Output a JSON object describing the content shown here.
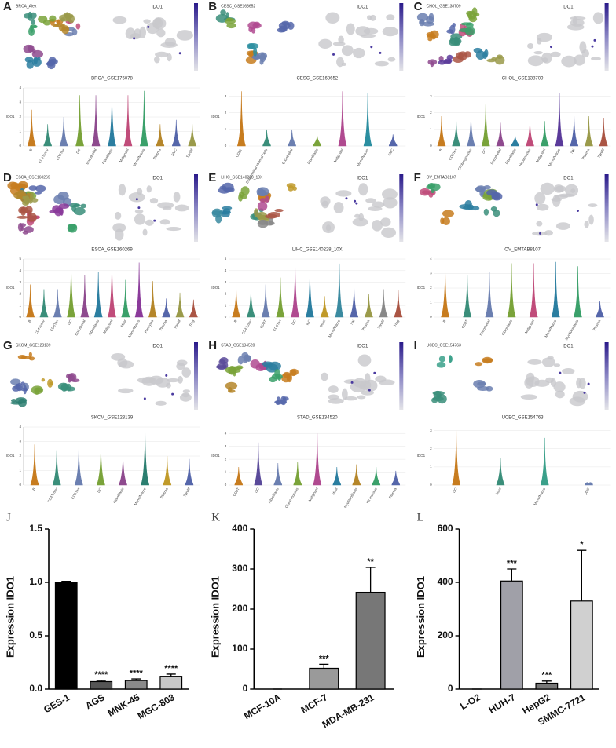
{
  "chart_data": [
    {
      "type": "violin",
      "panel": "A",
      "umap_title": "BRCA_Alex",
      "feature": "IDO1",
      "title": "BRCA_GSE176078",
      "ylabel": "IDO1",
      "categories": [
        "B",
        "CD4Tconv",
        "CD8Tex",
        "DC",
        "Endothelial",
        "Fibroblasts",
        "Malignant",
        "Mono/Macro",
        "Plasma",
        "SMC",
        "Tprolif"
      ],
      "values": [
        2.5,
        1.5,
        2.0,
        3.5,
        3.5,
        3.5,
        3.5,
        3.8,
        1.5,
        1.8,
        1.5
      ],
      "colors": [
        "#c77c1f",
        "#3a8e7a",
        "#6b7fb0",
        "#7aa33a",
        "#8e4a8e",
        "#2b7ea0",
        "#c04c7a",
        "#3aa06a",
        "#b5862a",
        "#5566aa",
        "#9a9a4a"
      ],
      "ylim": [
        0,
        4
      ],
      "yticks": [
        0,
        1,
        2,
        3,
        4
      ]
    },
    {
      "type": "violin",
      "panel": "B",
      "umap_title": "CESC_GSE168652",
      "feature": "IDO1",
      "title": "CESC_GSE168652",
      "ylabel": "IDO1",
      "categories": [
        "CD8T",
        "Endometrial stromal cells",
        "Endothelial",
        "Fibroblasts",
        "Malignant",
        "Mono/Macro",
        "SMC"
      ],
      "values": [
        3.3,
        1.0,
        1.0,
        0.6,
        3.3,
        3.2,
        0.7
      ],
      "colors": [
        "#c77c1f",
        "#3a8e7a",
        "#6b7fb0",
        "#7aa33a",
        "#b04a90",
        "#2b8ea0",
        "#5566aa"
      ],
      "ylim": [
        0,
        3.5
      ],
      "yticks": [
        0,
        1,
        2,
        3
      ]
    },
    {
      "type": "violin",
      "panel": "C",
      "umap_title": "CHOL_GSE138709",
      "feature": "IDO1",
      "title": "CHOL_GSE138709",
      "ylabel": "IDO1",
      "categories": [
        "B",
        "CD8Tex",
        "Cholangiocytes",
        "DC",
        "Endothelial",
        "Fibroblasts",
        "Hepatocytes",
        "Malignant",
        "Mono/Macro",
        "NK",
        "Plasma",
        "Tprolif"
      ],
      "values": [
        1.8,
        1.5,
        1.8,
        2.5,
        1.4,
        0.6,
        1.5,
        1.5,
        3.2,
        1.8,
        1.8,
        1.7
      ],
      "colors": [
        "#c77c1f",
        "#3a8e7a",
        "#6b7fb0",
        "#7aa33a",
        "#8e4a8e",
        "#2b7ea0",
        "#c04c7a",
        "#3aa06a",
        "#5a3a9a",
        "#5566aa",
        "#9a9a4a",
        "#aa5544"
      ],
      "ylim": [
        0,
        3.5
      ],
      "yticks": [
        0,
        1,
        2,
        3
      ]
    },
    {
      "type": "violin",
      "panel": "D",
      "umap_title": "ESCA_GSE160269",
      "feature": "IDO1",
      "title": "ESCA_GSE160269",
      "ylabel": "IDO1",
      "categories": [
        "B",
        "CD4Tconv",
        "CD8Tex",
        "DC",
        "Endothelial",
        "Fibroblasts",
        "Malignant",
        "Mast",
        "Mono/Macro",
        "Pericytes",
        "Plasma",
        "Tprolif",
        "Treg"
      ],
      "values": [
        2.8,
        2.4,
        2.4,
        4.5,
        3.6,
        3.9,
        4.7,
        3.2,
        4.7,
        3.1,
        1.6,
        2.1,
        1.5
      ],
      "colors": [
        "#c77c1f",
        "#3a8e7a",
        "#6b7fb0",
        "#7aa33a",
        "#8e4a8e",
        "#2b7ea0",
        "#c04c7a",
        "#3aa06a",
        "#8a3a9a",
        "#b5862a",
        "#5566aa",
        "#9a9a4a",
        "#aa5544"
      ],
      "ylim": [
        0,
        5
      ],
      "yticks": [
        0,
        1,
        2,
        3,
        4,
        5
      ]
    },
    {
      "type": "violin",
      "panel": "E",
      "umap_title": "LIHC_GSE140228_10X",
      "feature": "IDO1",
      "title": "LIHC_GSE140228_10X",
      "ylabel": "IDO1",
      "categories": [
        "B",
        "CD4Tconv",
        "CD8T",
        "CD8Tex",
        "DC",
        "ILC",
        "Mast",
        "Mono/Macro",
        "NK",
        "Plasma",
        "Tprolif",
        "Treg"
      ],
      "values": [
        2.4,
        2.3,
        2.8,
        3.4,
        4.5,
        3.9,
        1.8,
        4.6,
        2.6,
        2.0,
        2.4,
        2.3
      ],
      "colors": [
        "#c77c1f",
        "#3a8e7a",
        "#6b7fb0",
        "#7aa33a",
        "#b04a90",
        "#2b7ea0",
        "#c09a2a",
        "#3a8aa0",
        "#5566aa",
        "#9a9a4a",
        "#888888",
        "#aa5544"
      ],
      "ylim": [
        0,
        5
      ],
      "yticks": [
        0,
        1,
        2,
        3,
        4,
        5
      ]
    },
    {
      "type": "violin",
      "panel": "F",
      "umap_title": "OV_EMTAB8107",
      "feature": "IDO1",
      "title": "OV_EMTAB8107",
      "ylabel": "IDO1",
      "categories": [
        "B",
        "CD8T",
        "Endothelial",
        "Fibroblasts",
        "Malignant",
        "Mono/Macro",
        "Myofibroblasts",
        "Plasma"
      ],
      "values": [
        3.3,
        2.9,
        3.1,
        3.7,
        3.7,
        3.8,
        3.5,
        1.1
      ],
      "colors": [
        "#c77c1f",
        "#3a8e7a",
        "#6b7fb0",
        "#7aa33a",
        "#c04c7a",
        "#2b7ea0",
        "#3aa06a",
        "#5566aa"
      ],
      "ylim": [
        0,
        4
      ],
      "yticks": [
        0,
        1,
        2,
        3,
        4
      ]
    },
    {
      "type": "violin",
      "panel": "G",
      "umap_title": "SKCM_GSE123139",
      "feature": "IDO1",
      "title": "SKCM_GSE123139",
      "ylabel": "IDO1",
      "categories": [
        "B",
        "CD4Tconv",
        "CD8Tex",
        "DC",
        "Fibroblasts",
        "Mono/Macro",
        "Plasma",
        "Tprolif"
      ],
      "values": [
        2.8,
        2.4,
        2.5,
        2.6,
        2.0,
        3.7,
        2.0,
        1.8
      ],
      "colors": [
        "#c77c1f",
        "#3a8e7a",
        "#6b7fb0",
        "#7aa33a",
        "#8e4a8e",
        "#2b7e70",
        "#c09a2a",
        "#5566aa"
      ],
      "ylim": [
        0,
        4
      ],
      "yticks": [
        0,
        1,
        2,
        3,
        4
      ]
    },
    {
      "type": "violin",
      "panel": "H",
      "umap_title": "STAD_GSE134520",
      "feature": "IDO1",
      "title": "STAD_GSE134520",
      "ylabel": "IDO1",
      "categories": [
        "CD8T",
        "DC",
        "Fibroblasts",
        "Gland mucous",
        "Malignant",
        "Mast",
        "Myofibroblasts",
        "Pit mucous",
        "Plasma"
      ],
      "values": [
        1.4,
        3.3,
        1.7,
        1.8,
        4.0,
        1.4,
        1.6,
        1.4,
        1.1
      ],
      "colors": [
        "#c77c1f",
        "#5a4a9a",
        "#6b7fb0",
        "#7aa33a",
        "#b04a90",
        "#2b7ea0",
        "#b5862a",
        "#3aa06a",
        "#5566aa"
      ],
      "ylim": [
        0,
        4.5
      ],
      "yticks": [
        0,
        1,
        2,
        3,
        4
      ]
    },
    {
      "type": "violin",
      "panel": "I",
      "umap_title": "UCEC_GSE154763",
      "feature": "IDO1",
      "title": "UCEC_GSE154763",
      "ylabel": "IDO1",
      "categories": [
        "DC",
        "Mast",
        "Mono/Macro",
        "pDC"
      ],
      "values": [
        3.0,
        1.5,
        2.6,
        0.05
      ],
      "colors": [
        "#c77c1f",
        "#3a8e7a",
        "#3aa08a",
        "#6b7fb0"
      ],
      "ylim": [
        0,
        3.2
      ],
      "yticks": [
        0,
        1,
        2,
        3
      ]
    },
    {
      "type": "bar",
      "panel": "J",
      "ylabel": "Expression IDO1",
      "categories": [
        "GES-1",
        "AGS",
        "MNK-45",
        "MGC-803"
      ],
      "values": [
        1.0,
        0.07,
        0.08,
        0.12
      ],
      "errors": [
        0.01,
        0.01,
        0.015,
        0.02
      ],
      "significance": [
        null,
        "****",
        "****",
        "****"
      ],
      "colors": [
        "#000000",
        "#555555",
        "#8a8a8a",
        "#c8c8c8"
      ],
      "ylim": [
        0,
        1.5
      ],
      "yticks": [
        {
          "value": 0,
          "label": "0.0"
        },
        0.5,
        {
          "value": 1,
          "label": "1.0"
        },
        1.5
      ]
    },
    {
      "type": "bar",
      "panel": "K",
      "ylabel": "Expression IDO1",
      "categories": [
        "MCF-10A",
        "MCF-7",
        "MDA-MB-231"
      ],
      "values": [
        0,
        52,
        242
      ],
      "errors": [
        0,
        10,
        62
      ],
      "significance": [
        null,
        "***",
        "**"
      ],
      "colors": [
        "#000000",
        "#9a9a9a",
        "#777777"
      ],
      "ylim": [
        0,
        400
      ],
      "yticks": [
        0,
        100,
        200,
        300,
        400
      ]
    },
    {
      "type": "bar",
      "panel": "L",
      "ylabel": "Expression IDO1",
      "categories": [
        "L-O2",
        "HUH-7",
        "HepG2",
        "SMMC-7721"
      ],
      "values": [
        0,
        405,
        22,
        330
      ],
      "errors": [
        0,
        45,
        8,
        190
      ],
      "significance": [
        null,
        "***",
        "***",
        "*"
      ],
      "colors": [
        "#000000",
        "#a0a0a8",
        "#777777",
        "#d0d0d0"
      ],
      "ylim": [
        0,
        600
      ],
      "yticks": [
        0,
        200,
        400,
        600
      ]
    }
  ]
}
